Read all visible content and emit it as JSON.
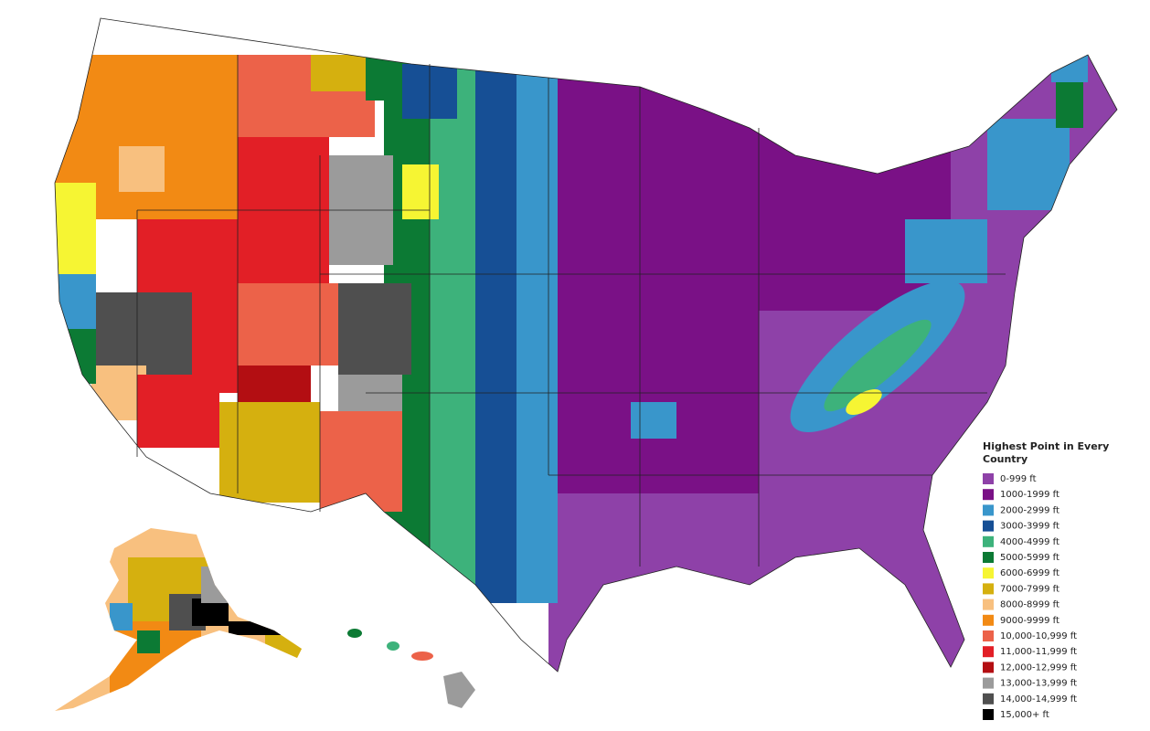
{
  "legend": {
    "title_lines": [
      "Highest Point in Every",
      "Country"
    ],
    "items": [
      {
        "label": "0-999 ft",
        "color": "#8e41a8"
      },
      {
        "label": "1000-1999 ft",
        "color": "#7a1186"
      },
      {
        "label": "2000-2999 ft",
        "color": "#3996cb"
      },
      {
        "label": "3000-3999 ft",
        "color": "#164f95"
      },
      {
        "label": "4000-4999 ft",
        "color": "#3db27b"
      },
      {
        "label": "5000-5999 ft",
        "color": "#0c7a34"
      },
      {
        "label": "6000-6999 ft",
        "color": "#f6f533"
      },
      {
        "label": "7000-7999 ft",
        "color": "#d5b00f"
      },
      {
        "label": "8000-8999 ft",
        "color": "#f8c07f"
      },
      {
        "label": "9000-9999 ft",
        "color": "#f28a14"
      },
      {
        "label": "10,000-10,999 ft",
        "color": "#ec6249"
      },
      {
        "label": "11,000-11,999 ft",
        "color": "#e21f26"
      },
      {
        "label": "12,000-12,999 ft",
        "color": "#b30e12"
      },
      {
        "label": "13,000-13,999 ft",
        "color": "#9b9b9b"
      },
      {
        "label": "14,000-14,999 ft",
        "color": "#4f4f4f"
      },
      {
        "label": "15,000+ ft",
        "color": "#000000"
      }
    ]
  }
}
